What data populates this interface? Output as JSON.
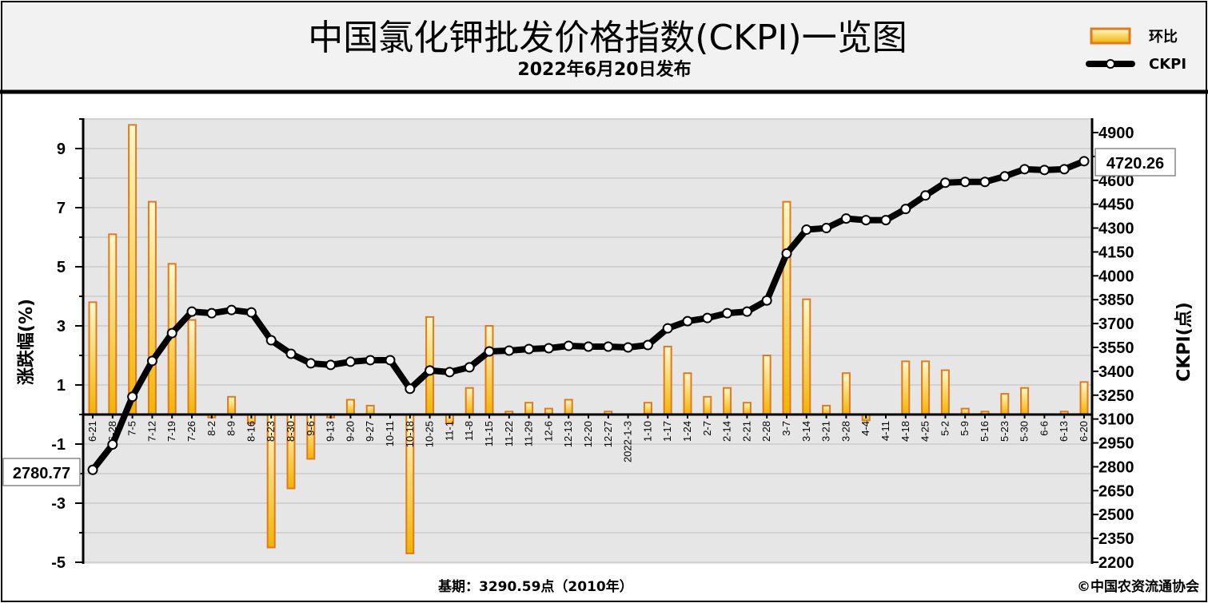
{
  "title": "中国氯化钾批发价格指数(CKPI)一览图",
  "subtitle": "2022年6月20日发布",
  "footer": {
    "base": "基期：3290.59点（2010年）",
    "credit": "©中国农资流通协会"
  },
  "legend": {
    "bar_label": "环比",
    "line_label": "CKPI"
  },
  "colors": {
    "bar_stroke": "#e07a1f",
    "bar_fill_top": "#fff6c0",
    "bar_fill_bottom": "#f2b400",
    "line": "#000000",
    "marker_fill": "#ffffff",
    "plot_bg": "#e6e6e6",
    "header_bg": "#f2f2f2"
  },
  "chart_data": {
    "type": "bar+line",
    "categories": [
      "6-21",
      "6-28",
      "7-5",
      "7-12",
      "7-19",
      "7-26",
      "8-2",
      "8-9",
      "8-16",
      "8-23",
      "8-30",
      "9-6",
      "9-13",
      "9-20",
      "9-27",
      "10-11",
      "10-18",
      "10-25",
      "11-1",
      "11-8",
      "11-15",
      "11-22",
      "11-29",
      "12-6",
      "12-13",
      "12-20",
      "12-27",
      "2022-1-3",
      "1-10",
      "1-17",
      "1-24",
      "2-7",
      "2-14",
      "2-21",
      "2-28",
      "3-7",
      "3-14",
      "3-21",
      "3-28",
      "4-4",
      "4-11",
      "4-18",
      "4-25",
      "5-2",
      "5-9",
      "5-16",
      "5-23",
      "5-30",
      "6-6",
      "6-13",
      "6-20"
    ],
    "series": [
      {
        "name": "环比",
        "axis": "left",
        "values": [
          3.8,
          6.1,
          9.8,
          7.2,
          5.1,
          3.2,
          -0.1,
          0.6,
          -0.3,
          -4.5,
          -2.5,
          -1.5,
          -0.1,
          0.5,
          0.3,
          0.0,
          -4.7,
          3.3,
          -0.3,
          0.9,
          3.0,
          0.1,
          0.4,
          0.2,
          0.5,
          0.0,
          0.1,
          0.0,
          0.4,
          2.3,
          1.4,
          0.6,
          0.9,
          0.4,
          2.0,
          7.2,
          3.9,
          0.3,
          1.4,
          -0.2,
          0.0,
          1.8,
          1.8,
          1.5,
          0.2,
          0.1,
          0.7,
          0.9,
          0.0,
          0.1,
          1.1
        ]
      },
      {
        "name": "CKPI",
        "axis": "right",
        "values": [
          2780.77,
          2940,
          3240,
          3465,
          3640,
          3775,
          3765,
          3785,
          3770,
          3595,
          3510,
          3450,
          3440,
          3460,
          3470,
          3470,
          3290,
          3405,
          3395,
          3425,
          3525,
          3530,
          3540,
          3545,
          3560,
          3555,
          3555,
          3550,
          3565,
          3670,
          3715,
          3735,
          3765,
          3775,
          3845,
          4140,
          4290,
          4300,
          4360,
          4350,
          4350,
          4420,
          4505,
          4585,
          4590,
          4590,
          4625,
          4670,
          4665,
          4670,
          4720.26
        ]
      }
    ],
    "y_left": {
      "label": "涨跌幅(%)",
      "ticks": [
        9,
        7,
        5,
        3,
        1,
        -1,
        -3,
        -5
      ],
      "range": [
        -5,
        10
      ]
    },
    "y_right": {
      "label": "CKPI(点)",
      "ticks": [
        4900,
        4750,
        4600,
        4450,
        4300,
        4150,
        4000,
        3850,
        3700,
        3550,
        3400,
        3250,
        3100,
        2950,
        2800,
        2650,
        2500,
        2350,
        2200
      ],
      "range": [
        2200,
        5000
      ]
    },
    "annotations": {
      "first_value": "2780.77",
      "last_value": "4720.26"
    },
    "grid": true,
    "legend_position": "top-right"
  }
}
